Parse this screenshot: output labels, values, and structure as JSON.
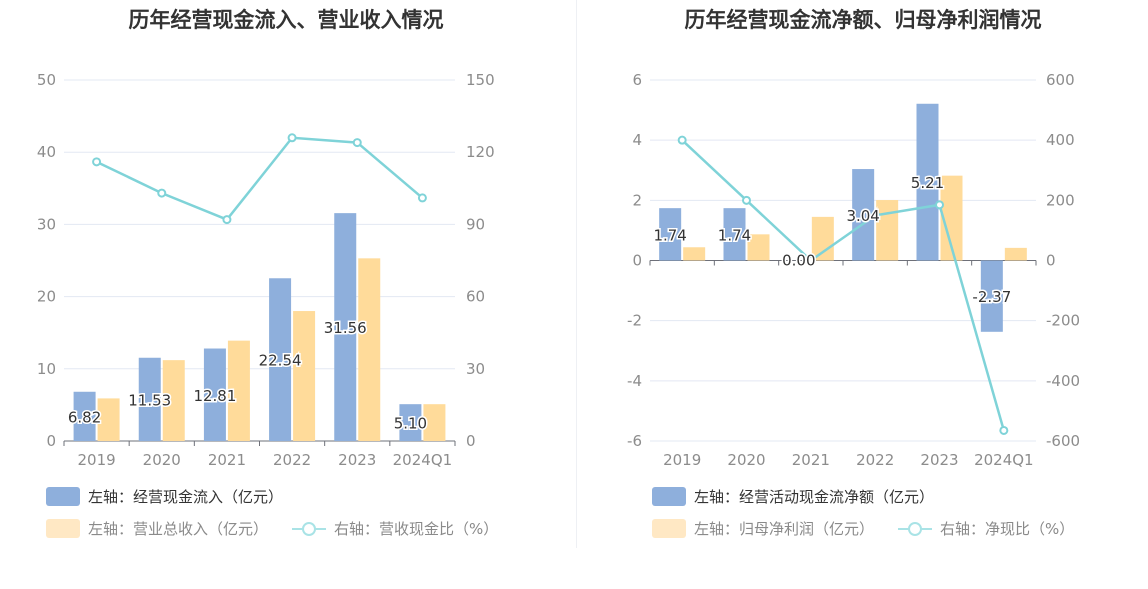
{
  "colors": {
    "bar1": "#8eafdc",
    "bar2": "#ffdb9a",
    "line": "#7fd3d8",
    "grid": "#e3e8f3",
    "axis_text": "#8c8c8c",
    "label_text": "#333333"
  },
  "charts": [
    {
      "title": "历年经营现金流入、营业收入情况",
      "legend": [
        {
          "label": "左轴：经营现金流入（亿元）",
          "kind": "bar",
          "color": "#8eafdc"
        },
        {
          "label": "左轴：营业总收入（亿元）",
          "kind": "bar",
          "color": "#ffe8c4"
        },
        {
          "label": "右轴：营收现金比（%）",
          "kind": "line",
          "color": "#a9e3e6"
        }
      ]
    },
    {
      "title": "历年经营现金流净额、归母净利润情况",
      "legend": [
        {
          "label": "左轴：经营活动现金流净额（亿元）",
          "kind": "bar",
          "color": "#8eafdc"
        },
        {
          "label": "左轴：归母净利润（亿元）",
          "kind": "bar",
          "color": "#ffe8c4"
        },
        {
          "label": "右轴：净现比（%）",
          "kind": "line",
          "color": "#a9e3e6"
        }
      ]
    }
  ],
  "chart_data": [
    {
      "type": "bar",
      "title": "历年经营现金流入、营业收入情况",
      "categories": [
        "2019",
        "2020",
        "2021",
        "2022",
        "2023",
        "2024Q1"
      ],
      "y_left": {
        "min": 0,
        "max": 50,
        "ticks": [
          0,
          10,
          20,
          30,
          40,
          50
        ]
      },
      "y_right": {
        "min": 0,
        "max": 150,
        "ticks": [
          0,
          30,
          60,
          90,
          120,
          150
        ]
      },
      "series": [
        {
          "name": "左轴：经营现金流入（亿元）",
          "type": "bar",
          "axis": "left",
          "color": "#8eafdc",
          "values": [
            6.82,
            11.53,
            12.81,
            22.54,
            31.56,
            5.1
          ],
          "labels": [
            "6.82",
            "11.53",
            "12.81",
            "22.54",
            "31.56",
            "5.10"
          ]
        },
        {
          "name": "左轴：营业总收入（亿元）",
          "type": "bar",
          "axis": "left",
          "color": "#ffdb9a",
          "values": [
            5.9,
            11.2,
            13.9,
            18.0,
            25.3,
            5.1
          ]
        },
        {
          "name": "右轴：营收现金比（%）",
          "type": "line",
          "axis": "right",
          "color": "#7fd3d8",
          "values": [
            116,
            103,
            92,
            126,
            124,
            101
          ]
        }
      ],
      "grid": true,
      "legend_position": "bottom"
    },
    {
      "type": "bar",
      "title": "历年经营现金流净额、归母净利润情况",
      "categories": [
        "2019",
        "2020",
        "2021",
        "2022",
        "2023",
        "2024Q1"
      ],
      "y_left": {
        "min": -6,
        "max": 6,
        "ticks": [
          -6,
          -4,
          -2,
          0,
          2,
          4,
          6
        ]
      },
      "y_right": {
        "min": -600,
        "max": 600,
        "ticks": [
          -600,
          -400,
          -200,
          0,
          200,
          400,
          600
        ]
      },
      "series": [
        {
          "name": "左轴：经营活动现金流净额（亿元）",
          "type": "bar",
          "axis": "left",
          "color": "#8eafdc",
          "values": [
            1.74,
            1.74,
            0.0,
            3.04,
            5.21,
            -2.37
          ],
          "labels": [
            "1.74",
            "1.74",
            "0.00",
            "3.04",
            "5.21",
            "-2.37"
          ]
        },
        {
          "name": "左轴：归母净利润（亿元）",
          "type": "bar",
          "axis": "left",
          "color": "#ffdb9a",
          "values": [
            0.44,
            0.87,
            1.45,
            2.01,
            2.82,
            0.42
          ]
        },
        {
          "name": "右轴：净现比（%）",
          "type": "line",
          "axis": "right",
          "color": "#7fd3d8",
          "values": [
            400,
            200,
            0,
            150,
            185,
            -565
          ]
        }
      ],
      "grid": true,
      "legend_position": "bottom"
    }
  ]
}
